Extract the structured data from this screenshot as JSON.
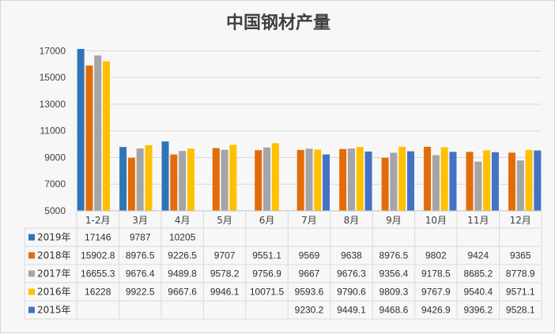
{
  "chart_data": {
    "type": "bar",
    "title": "中国钢材产量",
    "categories": [
      "1-2月",
      "3月",
      "4月",
      "5月",
      "6月",
      "7月",
      "8月",
      "9月",
      "10月",
      "11月",
      "12月"
    ],
    "yticks": [
      "5000",
      "7000",
      "9000",
      "11000",
      "13000",
      "15000",
      "17000"
    ],
    "ylim": [
      5000,
      17500
    ],
    "series": [
      {
        "name": "2019年",
        "color": "#2e75b6",
        "values": [
          17146,
          9787,
          10205,
          null,
          null,
          null,
          null,
          null,
          null,
          null,
          null
        ],
        "labels": [
          "17146",
          "9787",
          "10205",
          "",
          "",
          "",
          "",
          "",
          "",
          "",
          ""
        ]
      },
      {
        "name": "2018年",
        "color": "#e36c0a",
        "values": [
          15902.8,
          8976.5,
          9226.5,
          9707,
          9551.1,
          9569,
          9638,
          8976.5,
          9802,
          9424,
          9365
        ],
        "labels": [
          "15902.8",
          "8976.5",
          "9226.5",
          "9707",
          "9551.1",
          "9569",
          "9638",
          "8976.5",
          "9802",
          "9424",
          "9365"
        ]
      },
      {
        "name": "2017年",
        "color": "#a5a5a5",
        "values": [
          16655.3,
          9676.4,
          9489.8,
          9578.2,
          9756.9,
          9667,
          9676.3,
          9356.4,
          9178.5,
          8685.2,
          8778.9
        ],
        "labels": [
          "16655.3",
          "9676.4",
          "9489.8",
          "9578.2",
          "9756.9",
          "9667",
          "9676.3",
          "9356.4",
          "9178.5",
          "8685.2",
          "8778.9"
        ]
      },
      {
        "name": "2016年",
        "color": "#ffc000",
        "values": [
          16228,
          9922.5,
          9667.6,
          9946.1,
          10071.5,
          9593.6,
          9790.6,
          9809.3,
          9767.9,
          9540.4,
          9571.1
        ],
        "labels": [
          "16228",
          "9922.5",
          "9667.6",
          "9946.1",
          "10071.5",
          "9593.6",
          "9790.6",
          "9809.3",
          "9767.9",
          "9540.4",
          "9571.1"
        ]
      },
      {
        "name": "2015年",
        "color": "#4472c4",
        "values": [
          null,
          null,
          null,
          null,
          null,
          9230.2,
          9449.1,
          9468.6,
          9426.9,
          9396.2,
          9528.1
        ],
        "labels": [
          "",
          "",
          "",
          "",
          "",
          "9230.2",
          "9449.1",
          "9468.6",
          "9426.9",
          "9396.2",
          "9528.1"
        ]
      }
    ],
    "grid": true,
    "legend": "data-table"
  }
}
